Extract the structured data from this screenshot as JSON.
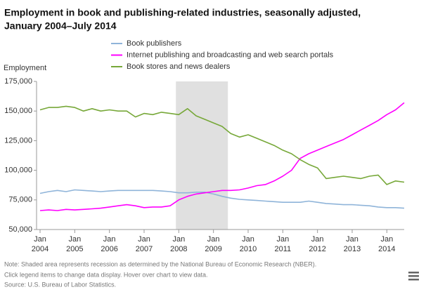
{
  "chart_data": {
    "type": "line",
    "title": "Employment in book and publishing-related industries, seasonally adjusted,",
    "subtitle": "January 2004–July 2014",
    "y_label": "Employment",
    "x": [
      2004,
      2004.25,
      2004.5,
      2004.75,
      2005,
      2005.25,
      2005.5,
      2005.75,
      2006,
      2006.25,
      2006.5,
      2006.75,
      2007,
      2007.25,
      2007.5,
      2007.75,
      2008,
      2008.25,
      2008.5,
      2008.75,
      2009,
      2009.25,
      2009.5,
      2009.75,
      2010,
      2010.25,
      2010.5,
      2010.75,
      2011,
      2011.25,
      2011.5,
      2011.75,
      2012,
      2012.25,
      2012.5,
      2012.75,
      2013,
      2013.25,
      2013.5,
      2013.75,
      2014,
      2014.25,
      2014.5
    ],
    "series": [
      {
        "name": "Book publishers",
        "color": "#8fb4d9",
        "values": [
          80500,
          82000,
          83000,
          82000,
          83500,
          83000,
          82500,
          82000,
          82500,
          83000,
          83000,
          83000,
          83000,
          83000,
          82500,
          82000,
          81000,
          81000,
          81500,
          81500,
          80000,
          78000,
          76500,
          75500,
          75000,
          74500,
          74000,
          73500,
          73000,
          73000,
          73000,
          74000,
          73000,
          72000,
          71500,
          71000,
          71000,
          70500,
          70000,
          69000,
          68500,
          68500,
          68000
        ]
      },
      {
        "name": "Internet publishing and broadcasting and web search portals",
        "color": "#ff00ff",
        "values": [
          66000,
          66500,
          66000,
          67000,
          66500,
          67000,
          67500,
          68000,
          69000,
          70000,
          71000,
          70000,
          68500,
          69000,
          69000,
          70000,
          75000,
          78000,
          80000,
          81000,
          82000,
          83000,
          83000,
          83500,
          85000,
          87000,
          88000,
          91000,
          95000,
          100000,
          110000,
          114000,
          117000,
          120000,
          123000,
          126000,
          130000,
          134000,
          138000,
          142000,
          147000,
          151000,
          157000
        ]
      },
      {
        "name": "Book stores and news dealers",
        "color": "#77a839",
        "values": [
          151000,
          153000,
          153000,
          154000,
          153000,
          150000,
          152000,
          150000,
          151000,
          150000,
          150000,
          145000,
          148000,
          147000,
          149000,
          148000,
          147000,
          152000,
          146000,
          143000,
          140000,
          137000,
          131000,
          128000,
          130000,
          127000,
          124000,
          121000,
          117000,
          114000,
          109000,
          105000,
          102000,
          93000,
          94000,
          95000,
          94000,
          93000,
          95000,
          96000,
          88000,
          91000,
          90000
        ]
      }
    ],
    "xlim": [
      2004,
      2014.5
    ],
    "xticks": [
      {
        "value": 2004,
        "label": "2004"
      },
      {
        "value": 2005,
        "label": "2005"
      },
      {
        "value": 2006,
        "label": "2006"
      },
      {
        "value": 2007,
        "label": "2007"
      },
      {
        "value": 2008,
        "label": "2008"
      },
      {
        "value": 2009,
        "label": "2009"
      },
      {
        "value": 2010,
        "label": "2010"
      },
      {
        "value": 2011,
        "label": "2011"
      },
      {
        "value": 2012,
        "label": "2012"
      },
      {
        "value": 2013,
        "label": "2013"
      },
      {
        "value": 2014,
        "label": "2014"
      }
    ],
    "xtick_month": "Jan",
    "ylim": [
      50000,
      175000
    ],
    "yticks": [
      {
        "value": 50000,
        "label": "50,000"
      },
      {
        "value": 75000,
        "label": "75,000"
      },
      {
        "value": 100000,
        "label": "100,000"
      },
      {
        "value": 125000,
        "label": "125,000"
      },
      {
        "value": 150000,
        "label": "150,000"
      },
      {
        "value": 175000,
        "label": "175,000"
      }
    ],
    "shaded_region": [
      2007.917,
      2009.417
    ],
    "notes": [
      "Note: Shaded area represents recession as determined by the National Bureau of Economic Research (NBER).",
      "Click legend items to change data display. Hover over chart to view data.",
      "Source: U.S. Bureau of Labor Statistics."
    ]
  }
}
